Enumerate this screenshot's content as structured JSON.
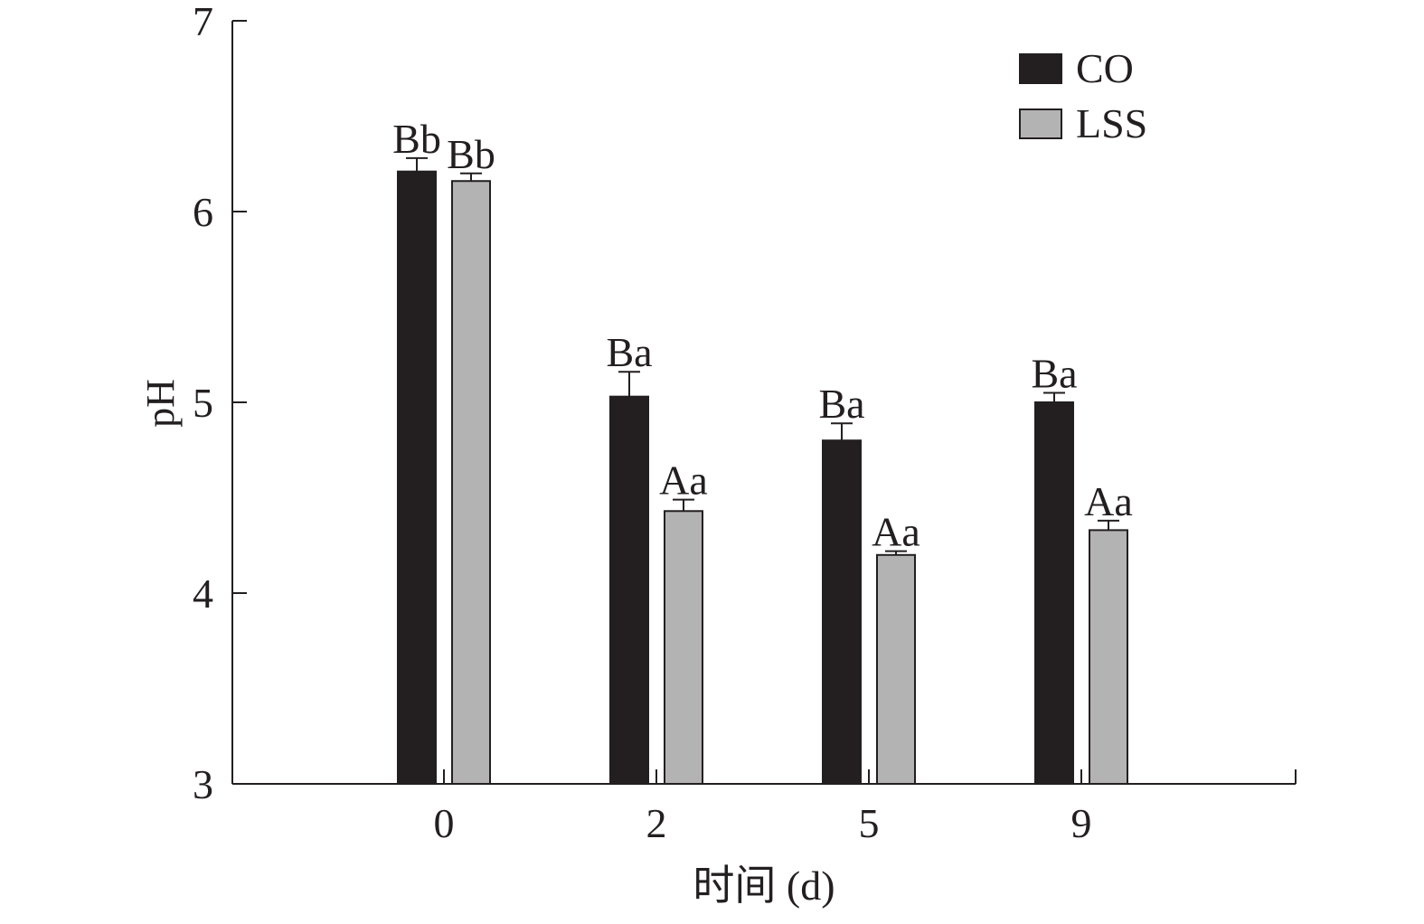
{
  "chart_data": {
    "type": "bar",
    "title": "",
    "xlabel": "时间 (d)",
    "ylabel": "pH",
    "categories": [
      "0",
      "2",
      "5",
      "9"
    ],
    "ylim": [
      3,
      7
    ],
    "yticks": [
      "3",
      "4",
      "5",
      "6",
      "7"
    ],
    "grid": false,
    "legend_position": "top-right",
    "series": [
      {
        "name": "CO",
        "color": "#231f20",
        "values": [
          6.21,
          5.03,
          4.8,
          5.0
        ],
        "errors": [
          0.07,
          0.13,
          0.09,
          0.05
        ],
        "labels": [
          "Bb",
          "Ba",
          "Ba",
          "Ba"
        ]
      },
      {
        "name": "LSS",
        "color": "#b3b3b3",
        "values": [
          6.16,
          4.43,
          4.2,
          4.33
        ],
        "errors": [
          0.04,
          0.06,
          0.02,
          0.05
        ],
        "labels": [
          "Bb",
          "Aa",
          "Aa",
          "Aa"
        ]
      }
    ]
  }
}
